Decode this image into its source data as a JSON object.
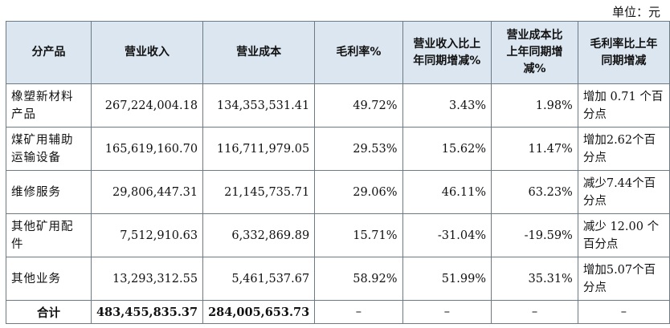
{
  "unit_label": "单位：元",
  "headers": [
    "分产品",
    "营业收入",
    "营业成本",
    "毛利率%",
    "营业收入比上年同期增减%",
    "营业成本比上年同期增减%",
    "毛利率比上年同期增减"
  ],
  "rows": [
    {
      "product": "橡塑新材料产品",
      "revenue": "267,224,004.18",
      "cost": "134,353,531.41",
      "margin": "49.72%",
      "rev_change": "3.43%",
      "cost_change": "1.98%",
      "margin_change": "增加 0.71 个百分点"
    },
    {
      "product": "煤矿用辅助运输设备",
      "revenue": "165,619,160.70",
      "cost": "116,711,979.05",
      "margin": "29.53%",
      "rev_change": "15.62%",
      "cost_change": "11.47%",
      "margin_change": "增加2.62个百分点"
    },
    {
      "product": "维修服务",
      "revenue": "29,806,447.31",
      "cost": "21,145,735.71",
      "margin": "29.06%",
      "rev_change": "46.11%",
      "cost_change": "63.23%",
      "margin_change": "减少7.44个百分点"
    },
    {
      "product": "其他矿用配件",
      "revenue": "7,512,910.63",
      "cost": "6,332,869.89",
      "margin": "15.71%",
      "rev_change": "-31.04%",
      "cost_change": "-19.59%",
      "margin_change": "减少 12.00 个百分点"
    },
    {
      "product": "其他业务",
      "revenue": "13,293,312.55",
      "cost": "5,461,537.67",
      "margin": "58.92%",
      "rev_change": "51.99%",
      "cost_change": "35.31%",
      "margin_change": "增加5.07个百分点"
    }
  ],
  "total": {
    "label": "合计",
    "revenue": "483,455,835.37",
    "cost": "284,005,653.73",
    "margin": "–",
    "rev_change": "–",
    "cost_change": "–",
    "margin_change": "–"
  }
}
